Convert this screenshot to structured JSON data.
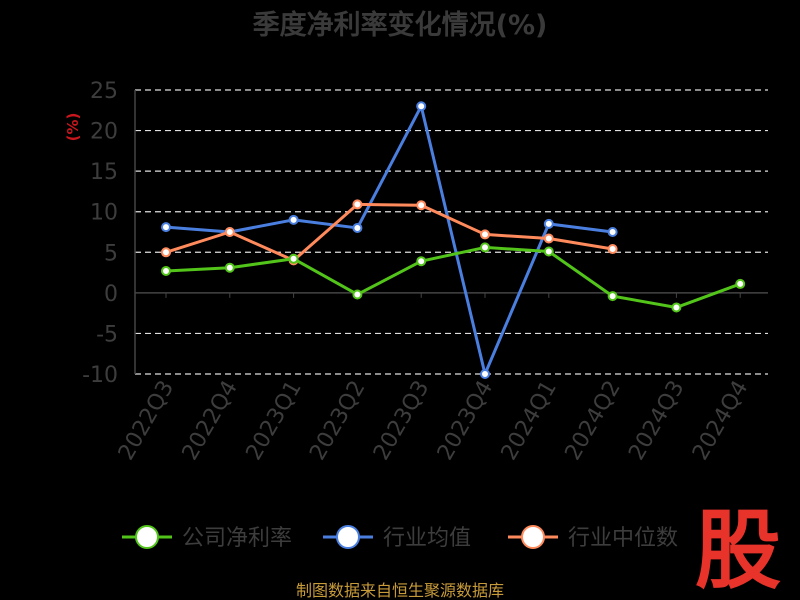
{
  "chart_data": {
    "type": "line",
    "title": "季度净利率变化情况(%)",
    "ylabel": "(%)",
    "ylim": [
      -10,
      25
    ],
    "yticks": [
      -10,
      -5,
      0,
      5,
      10,
      15,
      20,
      25
    ],
    "grid": true,
    "legend_position": "bottom",
    "categories": [
      "2022Q3",
      "2022Q4",
      "2023Q1",
      "2023Q2",
      "2023Q3",
      "2023Q4",
      "2024Q1",
      "2024Q2",
      "2024Q3",
      "2024Q4"
    ],
    "series": [
      {
        "name": "公司净利率",
        "color": "#52c41a",
        "values": [
          2.7,
          3.1,
          4.2,
          -0.2,
          3.9,
          5.6,
          5.1,
          -0.4,
          -1.8,
          1.1
        ]
      },
      {
        "name": "行业均值",
        "color": "#4a7fe0",
        "values": [
          8.1,
          7.5,
          9.0,
          8.0,
          23.0,
          -10.0,
          8.5,
          7.5,
          null,
          null
        ]
      },
      {
        "name": "行业中位数",
        "color": "#ff8a5c",
        "values": [
          5.0,
          7.5,
          4.0,
          10.9,
          10.8,
          7.2,
          6.7,
          5.4,
          null,
          null
        ]
      }
    ]
  },
  "footer": {
    "source": "制图数据来自恒生聚源数据库",
    "logo": "股"
  }
}
